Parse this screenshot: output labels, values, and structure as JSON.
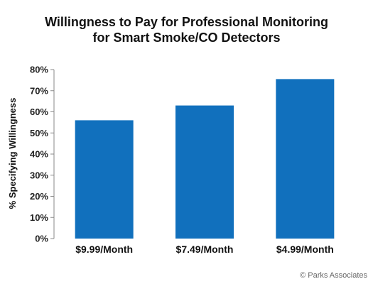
{
  "chart_data": {
    "type": "bar",
    "title_lines": [
      "Willingness to Pay for Professional Monitoring",
      "for Smart Smoke/CO Detectors"
    ],
    "ylabel": "% Specifying Willingness",
    "xlabel": "",
    "categories": [
      "$9.99/Month",
      "$7.49/Month",
      "$4.99/Month"
    ],
    "values": [
      56,
      63,
      75.5
    ],
    "ylim": [
      0,
      80
    ],
    "yticks": [
      "0%",
      "10%",
      "20%",
      "30%",
      "40%",
      "50%",
      "60%",
      "70%",
      "80%"
    ],
    "grid": false,
    "bar_color": "#1170bd"
  },
  "footer": {
    "copyright": "© Parks Associates"
  }
}
